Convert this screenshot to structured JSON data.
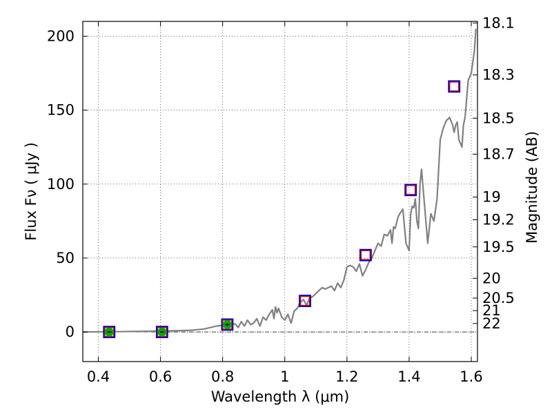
{
  "chart_data": {
    "type": "line",
    "title": "",
    "xlabel": "Wavelength  λ (μm)",
    "ylabel": "Flux  Fν  ( μJy )",
    "ylabel_right": "Magnitude (AB)",
    "xlim": [
      0.35,
      1.62
    ],
    "ylim": [
      -20,
      210
    ],
    "grid": true,
    "x_ticks": [
      0.4,
      0.6,
      0.8,
      1.0,
      1.2,
      1.4,
      1.6
    ],
    "x_tick_labels": [
      "0.4",
      "0.6",
      "0.8",
      "1",
      "1.2",
      "1.4",
      "1.6"
    ],
    "y_ticks": [
      0,
      50,
      100,
      150,
      200
    ],
    "y_tick_labels": [
      "0",
      "50",
      "100",
      "150",
      "200"
    ],
    "right_ticks": [
      {
        "mag": 18.1,
        "label": "18.1"
      },
      {
        "mag": 18.3,
        "label": "18.3"
      },
      {
        "mag": 18.5,
        "label": "18.5"
      },
      {
        "mag": 18.7,
        "label": "18.7"
      },
      {
        "mag": 19.0,
        "label": "19"
      },
      {
        "mag": 19.2,
        "label": "19.2"
      },
      {
        "mag": 19.5,
        "label": "19.5"
      },
      {
        "mag": 20.0,
        "label": "20"
      },
      {
        "mag": 20.5,
        "label": "20.5"
      },
      {
        "mag": 21.0,
        "label": "21"
      },
      {
        "mag": 22.0,
        "label": "22"
      }
    ],
    "colors": {
      "model": "#808080",
      "observed_square": "#0000cc",
      "model_square": "#dd0000",
      "detection": "#00aa00",
      "zero_line": "#000000"
    },
    "series": [
      {
        "name": "model spectrum",
        "style": "line",
        "x": [
          0.35,
          0.45,
          0.55,
          0.65,
          0.7,
          0.74,
          0.76,
          0.78,
          0.8,
          0.82,
          0.84,
          0.85,
          0.86,
          0.87,
          0.88,
          0.89,
          0.9,
          0.91,
          0.92,
          0.93,
          0.94,
          0.95,
          0.96,
          0.965,
          0.97,
          0.975,
          0.98,
          0.99,
          1.0,
          1.01,
          1.02,
          1.03,
          1.04,
          1.05,
          1.06,
          1.07,
          1.08,
          1.09,
          1.1,
          1.11,
          1.12,
          1.13,
          1.14,
          1.15,
          1.16,
          1.17,
          1.18,
          1.19,
          1.2,
          1.21,
          1.22,
          1.23,
          1.24,
          1.25,
          1.26,
          1.27,
          1.28,
          1.29,
          1.3,
          1.31,
          1.32,
          1.33,
          1.34,
          1.345,
          1.35,
          1.355,
          1.36,
          1.365,
          1.37,
          1.38,
          1.39,
          1.4,
          1.405,
          1.41,
          1.415,
          1.42,
          1.425,
          1.43,
          1.435,
          1.44,
          1.45,
          1.46,
          1.47,
          1.48,
          1.49,
          1.5,
          1.51,
          1.52,
          1.53,
          1.54,
          1.545,
          1.55,
          1.555,
          1.56,
          1.57,
          1.575,
          1.58,
          1.59,
          1.6,
          1.61,
          1.615
        ],
        "y": [
          0,
          0.2,
          0.5,
          0.8,
          1.2,
          2,
          3,
          4,
          4.5,
          5,
          5.5,
          3,
          7,
          4,
          8,
          5,
          6,
          9,
          4,
          10,
          8,
          12,
          15,
          9,
          17,
          13,
          16,
          10,
          8,
          12,
          6,
          14,
          16,
          20,
          22,
          18,
          23,
          24,
          26,
          28,
          30,
          29,
          30,
          31,
          28,
          33,
          30,
          35,
          44,
          45,
          44,
          41,
          46,
          38,
          42,
          47,
          50,
          55,
          60,
          58,
          66,
          65,
          69,
          60,
          71,
          70,
          74,
          78,
          80,
          83,
          60,
          55,
          80,
          85,
          84,
          90,
          75,
          70,
          100,
          110,
          85,
          60,
          80,
          75,
          90,
          130,
          138,
          143,
          145,
          140,
          135,
          140,
          142,
          130,
          125,
          140,
          145,
          170,
          175,
          190,
          205
        ]
      },
      {
        "name": "model photometry",
        "style": "open-square",
        "x": [
          0.435,
          0.605,
          0.815,
          1.065,
          1.26,
          1.405,
          1.545
        ],
        "y": [
          0,
          0,
          5,
          21,
          52,
          96,
          166
        ]
      },
      {
        "name": "observed photometry",
        "style": "open-square-large",
        "x": [
          0.435,
          0.605,
          0.815,
          1.065,
          1.26,
          1.405,
          1.545
        ],
        "y": [
          0,
          0,
          5,
          21,
          52,
          96,
          166
        ]
      },
      {
        "name": "detections",
        "style": "filled-circle-errorbar",
        "x": [
          0.435,
          0.605,
          0.815
        ],
        "y": [
          0,
          0,
          5
        ],
        "yerr": [
          0.6,
          0.6,
          0.8
        ]
      }
    ]
  }
}
